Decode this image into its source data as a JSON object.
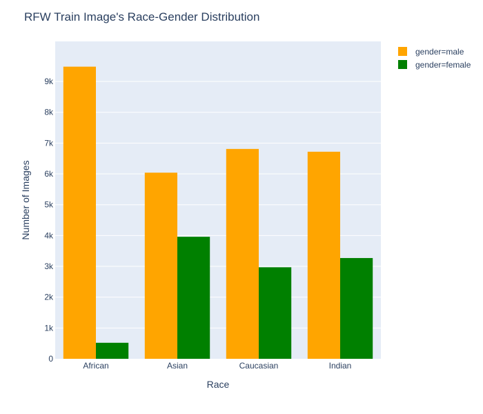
{
  "chart_data": {
    "type": "bar",
    "title": "RFW Train Image's Race-Gender Distribution",
    "xlabel": "Race",
    "ylabel": "Number of Images",
    "categories": [
      "African",
      "Asian",
      "Caucasian",
      "Indian"
    ],
    "series": [
      {
        "name": "gender=male",
        "color": "#FFA500",
        "values": [
          9480,
          6040,
          6810,
          6720
        ]
      },
      {
        "name": "gender=female",
        "color": "#008000",
        "values": [
          520,
          3960,
          2970,
          3270
        ]
      }
    ],
    "ylim": [
      0,
      10300
    ],
    "y_ticks": [
      0,
      1000,
      2000,
      3000,
      4000,
      5000,
      6000,
      7000,
      8000,
      9000
    ],
    "y_tick_labels": [
      "0",
      "1k",
      "2k",
      "3k",
      "4k",
      "5k",
      "6k",
      "7k",
      "8k",
      "9k"
    ],
    "grid": true,
    "legend_position": "top-right",
    "plot_background": "#E5ECF6",
    "grid_color": "#FFFFFF"
  }
}
